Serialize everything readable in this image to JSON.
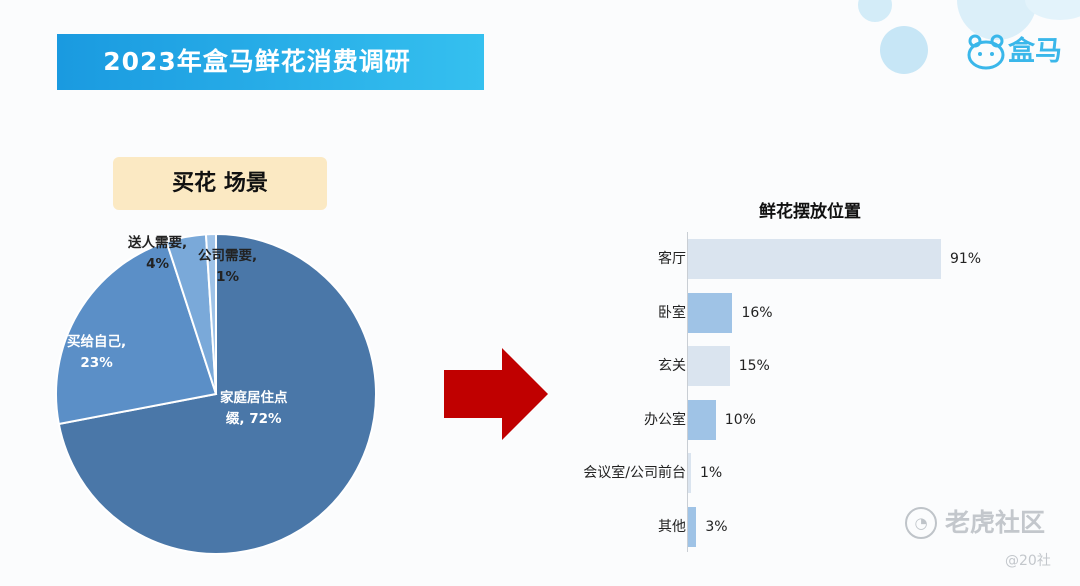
{
  "header": {
    "title": "2023年盒马鲜花消费调研"
  },
  "brand": {
    "logo_text": "盒马",
    "accent": "#1a9ae0"
  },
  "left_panel": {
    "label": "买花 场景"
  },
  "watermark": {
    "text": "老虎社区",
    "handle": "@20社"
  },
  "chart_data": [
    {
      "type": "pie",
      "slices": [
        {
          "label_line1": "家庭居住点",
          "label_line2": "缀, 72%",
          "value": 72,
          "color": "#4a77a8"
        },
        {
          "label_line1": "买给自己,",
          "label_line2": "23%",
          "value": 23,
          "color": "#5b8fc7"
        },
        {
          "label_line1": "送人需要,",
          "label_line2": "4%",
          "value": 4,
          "color": "#7aa9d9"
        },
        {
          "label_line1": "公司需要,",
          "label_line2": "1%",
          "value": 1,
          "color": "#9fc3e8"
        }
      ]
    },
    {
      "type": "bar",
      "orientation": "horizontal",
      "title": "鲜花摆放位置",
      "categories": [
        "客厅",
        "卧室",
        "玄关",
        "办公室",
        "会议室/公司前台",
        "其他"
      ],
      "values": [
        91,
        16,
        15,
        10,
        1,
        3
      ],
      "value_labels": [
        "91%",
        "16%",
        "15%",
        "10%",
        "1%",
        "3%"
      ],
      "colors": [
        "#dae4ef",
        "#9fc3e6",
        "#dae4ef",
        "#9fc3e6",
        "#dae4ef",
        "#9fc3e6"
      ],
      "xlim": [
        0,
        100
      ]
    }
  ]
}
